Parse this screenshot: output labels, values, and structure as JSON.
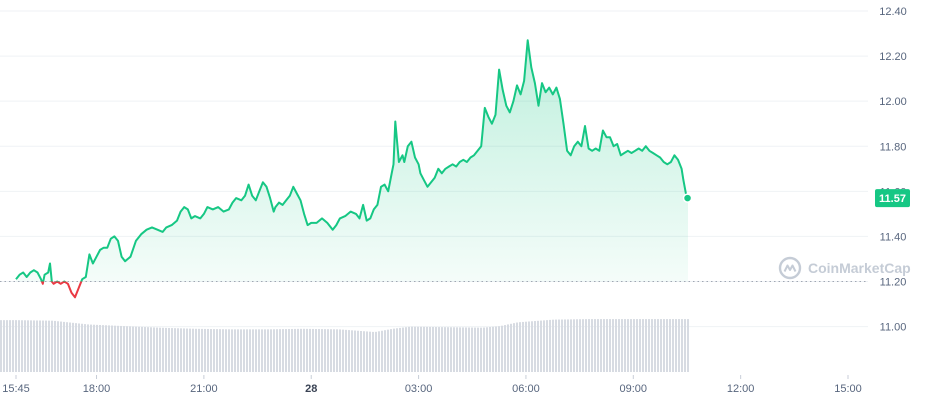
{
  "chart_data": {
    "type": "area",
    "y_ticks": [
      11.0,
      11.2,
      11.4,
      11.6,
      11.8,
      12.0,
      12.2,
      12.4
    ],
    "y_tick_labels": [
      "11.00",
      "11.20",
      "11.40",
      "11.60",
      "11.80",
      "12.00",
      "12.20",
      "12.40"
    ],
    "ylim": [
      10.8,
      12.44
    ],
    "x_tick_labels": [
      "15:45",
      "18:00",
      "21:00",
      "28",
      "03:00",
      "06:00",
      "09:00",
      "12:00",
      "15:00"
    ],
    "x_tick_times": [
      0,
      2.25,
      5.25,
      8.25,
      11.25,
      14.25,
      17.25,
      20.25,
      23.25
    ],
    "bold_tick": "28",
    "baseline": 11.2,
    "current_price_label": "11.57",
    "current_price": 11.57,
    "grid": true,
    "colors": {
      "up": "#16c784",
      "down": "#ea3943",
      "grid": "#eff2f5",
      "axis_text": "#58667e",
      "volume": "#d7dbe2"
    },
    "series": [
      {
        "values": [
          [
            0.0,
            11.21
          ],
          [
            0.1,
            11.23
          ],
          [
            0.2,
            11.24
          ],
          [
            0.3,
            11.22
          ],
          [
            0.4,
            11.24
          ],
          [
            0.5,
            11.25
          ],
          [
            0.6,
            11.24
          ],
          [
            0.7,
            11.21
          ],
          [
            0.75,
            11.19
          ],
          [
            0.8,
            11.23
          ],
          [
            0.9,
            11.24
          ],
          [
            0.95,
            11.28
          ],
          [
            1.0,
            11.2
          ],
          [
            1.05,
            11.19
          ],
          [
            1.15,
            11.2
          ],
          [
            1.25,
            11.19
          ],
          [
            1.35,
            11.2
          ],
          [
            1.45,
            11.19
          ],
          [
            1.55,
            11.15
          ],
          [
            1.65,
            11.13
          ],
          [
            1.75,
            11.17
          ],
          [
            1.85,
            11.21
          ],
          [
            1.95,
            11.22
          ],
          [
            2.05,
            11.32
          ],
          [
            2.15,
            11.28
          ],
          [
            2.25,
            11.31
          ],
          [
            2.35,
            11.34
          ],
          [
            2.45,
            11.35
          ],
          [
            2.55,
            11.35
          ],
          [
            2.65,
            11.39
          ],
          [
            2.75,
            11.4
          ],
          [
            2.85,
            11.38
          ],
          [
            2.95,
            11.31
          ],
          [
            3.05,
            11.29
          ],
          [
            3.2,
            11.31
          ],
          [
            3.35,
            11.38
          ],
          [
            3.5,
            11.41
          ],
          [
            3.65,
            11.43
          ],
          [
            3.8,
            11.44
          ],
          [
            3.95,
            11.43
          ],
          [
            4.1,
            11.42
          ],
          [
            4.2,
            11.44
          ],
          [
            4.35,
            11.45
          ],
          [
            4.5,
            11.47
          ],
          [
            4.6,
            11.51
          ],
          [
            4.7,
            11.53
          ],
          [
            4.8,
            11.52
          ],
          [
            4.9,
            11.48
          ],
          [
            5.0,
            11.49
          ],
          [
            5.15,
            11.48
          ],
          [
            5.25,
            11.5
          ],
          [
            5.35,
            11.53
          ],
          [
            5.5,
            11.52
          ],
          [
            5.65,
            11.53
          ],
          [
            5.8,
            11.51
          ],
          [
            5.95,
            11.52
          ],
          [
            6.05,
            11.55
          ],
          [
            6.15,
            11.57
          ],
          [
            6.3,
            11.56
          ],
          [
            6.4,
            11.58
          ],
          [
            6.5,
            11.63
          ],
          [
            6.6,
            11.58
          ],
          [
            6.7,
            11.56
          ],
          [
            6.8,
            11.6
          ],
          [
            6.9,
            11.64
          ],
          [
            7.0,
            11.62
          ],
          [
            7.1,
            11.57
          ],
          [
            7.2,
            11.51
          ],
          [
            7.25,
            11.53
          ],
          [
            7.35,
            11.55
          ],
          [
            7.45,
            11.54
          ],
          [
            7.55,
            11.56
          ],
          [
            7.65,
            11.58
          ],
          [
            7.75,
            11.62
          ],
          [
            7.85,
            11.59
          ],
          [
            7.95,
            11.56
          ],
          [
            8.05,
            11.5
          ],
          [
            8.15,
            11.45
          ],
          [
            8.25,
            11.46
          ],
          [
            8.4,
            11.46
          ],
          [
            8.55,
            11.48
          ],
          [
            8.7,
            11.46
          ],
          [
            8.85,
            11.43
          ],
          [
            8.95,
            11.45
          ],
          [
            9.05,
            11.48
          ],
          [
            9.2,
            11.49
          ],
          [
            9.35,
            11.51
          ],
          [
            9.5,
            11.5
          ],
          [
            9.6,
            11.48
          ],
          [
            9.7,
            11.54
          ],
          [
            9.8,
            11.47
          ],
          [
            9.9,
            11.48
          ],
          [
            10.0,
            11.52
          ],
          [
            10.1,
            11.54
          ],
          [
            10.2,
            11.62
          ],
          [
            10.3,
            11.63
          ],
          [
            10.4,
            11.6
          ],
          [
            10.5,
            11.68
          ],
          [
            10.55,
            11.72
          ],
          [
            10.6,
            11.91
          ],
          [
            10.7,
            11.73
          ],
          [
            10.8,
            11.76
          ],
          [
            10.85,
            11.73
          ],
          [
            10.95,
            11.8
          ],
          [
            11.05,
            11.82
          ],
          [
            11.15,
            11.75
          ],
          [
            11.25,
            11.72
          ],
          [
            11.3,
            11.68
          ],
          [
            11.4,
            11.65
          ],
          [
            11.5,
            11.62
          ],
          [
            11.6,
            11.64
          ],
          [
            11.7,
            11.66
          ],
          [
            11.8,
            11.7
          ],
          [
            11.9,
            11.68
          ],
          [
            12.0,
            11.7
          ],
          [
            12.1,
            11.71
          ],
          [
            12.2,
            11.72
          ],
          [
            12.3,
            11.71
          ],
          [
            12.4,
            11.73
          ],
          [
            12.5,
            11.74
          ],
          [
            12.6,
            11.73
          ],
          [
            12.7,
            11.75
          ],
          [
            12.8,
            11.76
          ],
          [
            12.9,
            11.78
          ],
          [
            13.0,
            11.8
          ],
          [
            13.1,
            11.97
          ],
          [
            13.2,
            11.93
          ],
          [
            13.3,
            11.9
          ],
          [
            13.4,
            11.94
          ],
          [
            13.5,
            12.14
          ],
          [
            13.6,
            12.05
          ],
          [
            13.7,
            11.98
          ],
          [
            13.8,
            11.95
          ],
          [
            13.9,
            12.0
          ],
          [
            14.0,
            12.07
          ],
          [
            14.1,
            12.03
          ],
          [
            14.2,
            12.09
          ],
          [
            14.3,
            12.27
          ],
          [
            14.4,
            12.15
          ],
          [
            14.5,
            12.08
          ],
          [
            14.6,
            11.98
          ],
          [
            14.7,
            12.08
          ],
          [
            14.8,
            12.04
          ],
          [
            14.9,
            12.06
          ],
          [
            15.0,
            12.03
          ],
          [
            15.1,
            12.06
          ],
          [
            15.2,
            12.01
          ],
          [
            15.3,
            11.9
          ],
          [
            15.4,
            11.78
          ],
          [
            15.5,
            11.76
          ],
          [
            15.6,
            11.8
          ],
          [
            15.7,
            11.82
          ],
          [
            15.8,
            11.8
          ],
          [
            15.9,
            11.89
          ],
          [
            16.0,
            11.79
          ],
          [
            16.1,
            11.78
          ],
          [
            16.2,
            11.79
          ],
          [
            16.3,
            11.78
          ],
          [
            16.4,
            11.87
          ],
          [
            16.5,
            11.84
          ],
          [
            16.6,
            11.84
          ],
          [
            16.7,
            11.8
          ],
          [
            16.8,
            11.81
          ],
          [
            16.9,
            11.76
          ],
          [
            17.0,
            11.77
          ],
          [
            17.1,
            11.78
          ],
          [
            17.2,
            11.77
          ],
          [
            17.3,
            11.78
          ],
          [
            17.4,
            11.79
          ],
          [
            17.5,
            11.78
          ],
          [
            17.6,
            11.8
          ],
          [
            17.7,
            11.78
          ],
          [
            17.8,
            11.77
          ],
          [
            17.9,
            11.76
          ],
          [
            18.0,
            11.75
          ],
          [
            18.1,
            11.73
          ],
          [
            18.2,
            11.72
          ],
          [
            18.3,
            11.73
          ],
          [
            18.4,
            11.76
          ],
          [
            18.5,
            11.74
          ],
          [
            18.6,
            11.7
          ],
          [
            18.65,
            11.65
          ],
          [
            18.72,
            11.59
          ],
          [
            18.78,
            11.57
          ]
        ]
      }
    ],
    "volume": [
      [
        0.0,
        0.96
      ],
      [
        1.0,
        0.95
      ],
      [
        2.0,
        0.88
      ],
      [
        3.0,
        0.85
      ],
      [
        4.0,
        0.82
      ],
      [
        5.0,
        0.8
      ],
      [
        6.0,
        0.79
      ],
      [
        7.0,
        0.79
      ],
      [
        8.0,
        0.8
      ],
      [
        9.0,
        0.79
      ],
      [
        10.0,
        0.74
      ],
      [
        10.5,
        0.8
      ],
      [
        11.0,
        0.84
      ],
      [
        12.0,
        0.83
      ],
      [
        13.0,
        0.82
      ],
      [
        13.5,
        0.85
      ],
      [
        14.0,
        0.92
      ],
      [
        15.0,
        0.97
      ],
      [
        16.0,
        0.98
      ],
      [
        17.0,
        0.98
      ],
      [
        18.0,
        0.98
      ],
      [
        18.78,
        0.98
      ]
    ]
  },
  "watermark": {
    "text": "CoinMarketCap",
    "icon": "coinmarketcap-logo-icon"
  }
}
